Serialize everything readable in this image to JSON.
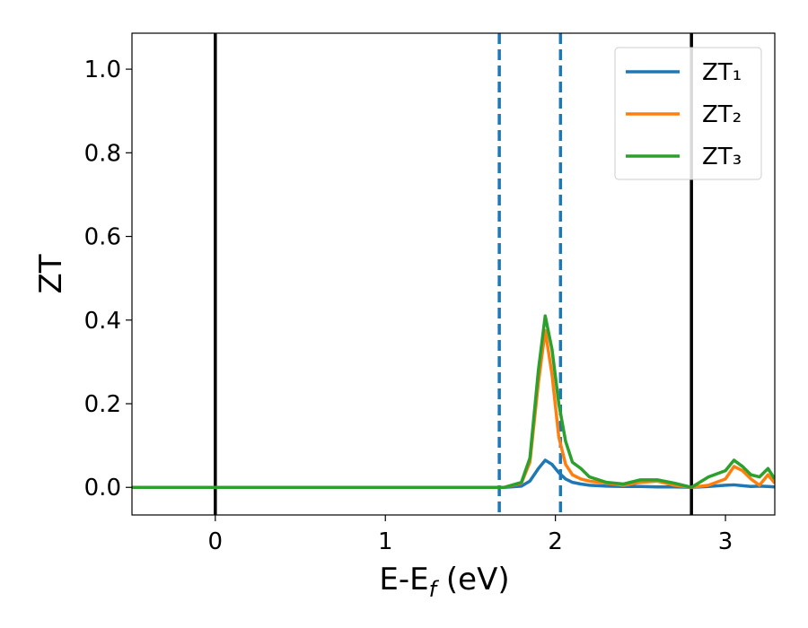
{
  "chart_data": {
    "type": "line",
    "xlabel": {
      "text": "E-E",
      "sub": "f",
      "rest": " (eV)"
    },
    "ylabel": "ZT",
    "x": [
      -0.49,
      0,
      0.5,
      1,
      1.5,
      1.7,
      1.8,
      1.85,
      1.9,
      1.94,
      1.98,
      2.02,
      2.06,
      2.1,
      2.15,
      2.2,
      2.3,
      2.4,
      2.5,
      2.6,
      2.7,
      2.8,
      2.9,
      3.0,
      3.05,
      3.1,
      3.15,
      3.2,
      3.25,
      3.29
    ],
    "series": [
      {
        "name": "ZT₁",
        "color": "#1f77b4",
        "values": [
          0,
          0,
          0,
          0,
          0,
          0,
          0.003,
          0.015,
          0.045,
          0.065,
          0.055,
          0.035,
          0.02,
          0.012,
          0.008,
          0.005,
          0.003,
          0.002,
          0.002,
          0.001,
          0.001,
          0,
          0.002,
          0.005,
          0.006,
          0.004,
          0.002,
          0.003,
          0.002,
          0.001
        ]
      },
      {
        "name": "ZT₂",
        "color": "#ff7f0e",
        "values": [
          0,
          0,
          0,
          0,
          0,
          0,
          0.01,
          0.06,
          0.25,
          0.375,
          0.27,
          0.12,
          0.055,
          0.03,
          0.02,
          0.015,
          0.01,
          0.005,
          0.012,
          0.015,
          0.005,
          0,
          0.005,
          0.02,
          0.05,
          0.04,
          0.02,
          0.005,
          0.03,
          0.01
        ]
      },
      {
        "name": "ZT₃",
        "color": "#2ca02c",
        "values": [
          0,
          0,
          0,
          0,
          0,
          0,
          0.012,
          0.07,
          0.28,
          0.41,
          0.33,
          0.2,
          0.11,
          0.06,
          0.045,
          0.025,
          0.012,
          0.008,
          0.018,
          0.018,
          0.01,
          0,
          0.025,
          0.04,
          0.065,
          0.05,
          0.03,
          0.025,
          0.045,
          0.02
        ]
      }
    ],
    "vlines": [
      {
        "x": 0,
        "color": "#000000",
        "style": "solid"
      },
      {
        "x": 2.8,
        "color": "#000000",
        "style": "solid"
      },
      {
        "x": 1.67,
        "color": "#1f77b4",
        "style": "dashed"
      },
      {
        "x": 2.03,
        "color": "#1f77b4",
        "style": "dashed"
      }
    ],
    "xlim": [
      -0.49,
      3.29
    ],
    "ylim": [
      -0.066,
      1.086
    ],
    "xticks": [
      0,
      1,
      2,
      3
    ],
    "yticks": [
      {
        "value": 0,
        "label": "0.0"
      },
      {
        "value": 0.2,
        "label": "0.2"
      },
      {
        "value": 0.4,
        "label": "0.4"
      },
      {
        "value": 0.6,
        "label": "0.6"
      },
      {
        "value": 0.8,
        "label": "0.8"
      },
      {
        "value": 1.0,
        "label": "1.0"
      }
    ],
    "legend": "upper right"
  }
}
